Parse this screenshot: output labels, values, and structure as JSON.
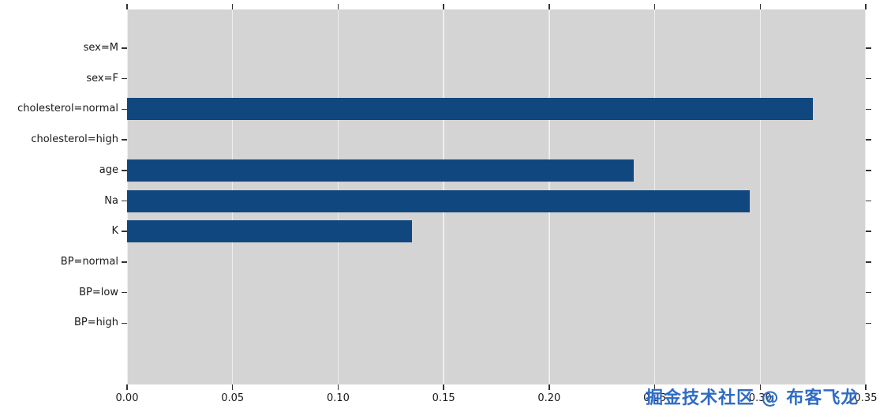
{
  "chart_data": {
    "type": "bar",
    "orientation": "horizontal",
    "title": "",
    "xlabel": "",
    "ylabel": "",
    "categories": [
      "sex=M",
      "sex=F",
      "cholesterol=normal",
      "cholesterol=high",
      "age",
      "Na",
      "K",
      "BP=normal",
      "BP=low",
      "BP=high"
    ],
    "values": [
      0,
      0,
      0.325,
      0,
      0.24,
      0.295,
      0.135,
      0,
      0,
      0
    ],
    "xlim": [
      0,
      0.35
    ],
    "xticks": [
      0,
      0.05,
      0.1,
      0.15,
      0.2,
      0.25,
      0.3,
      0.35
    ],
    "xtick_labels": [
      "0.00",
      "0.05",
      "0.10",
      "0.15",
      "0.20",
      "0.25",
      "0.30",
      "0.35"
    ],
    "grid": true,
    "legend": false,
    "colors": {
      "bar": "#10477e",
      "plot_bg": "#d4d4d4",
      "figure_bg": "#ffffff",
      "grid": "#ffffff",
      "tick": "#333333",
      "label": "#1a1a1a"
    }
  },
  "watermark": {
    "text": "掘金技术社区 @ 布客飞龙",
    "color": "#2e6bc6"
  }
}
